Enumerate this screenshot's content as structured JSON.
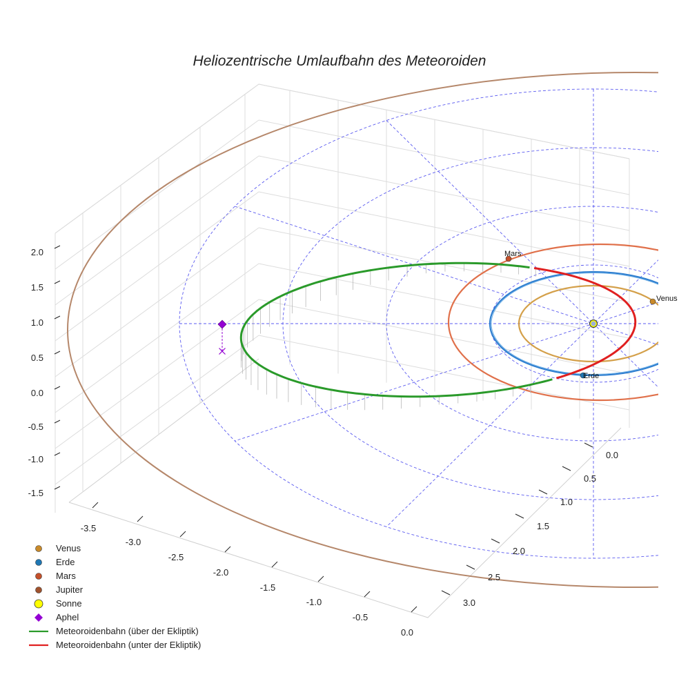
{
  "chart_data": {
    "type": "line3d",
    "title": "Heliozentrische Umlaufbahn des Meteoroiden",
    "axes": {
      "x": {
        "ticks": [
          "-3.5",
          "-3.0",
          "-2.5",
          "-2.0",
          "-1.5",
          "-1.0",
          "-0.5",
          "0.0"
        ]
      },
      "y": {
        "ticks": [
          "0.0",
          "0.5",
          "1.0",
          "1.5",
          "2.0",
          "2.5",
          "3.0"
        ]
      },
      "z": {
        "ticks": [
          "2.0",
          "1.5",
          "1.0",
          "0.5",
          "0.0",
          "-0.5",
          "-1.0",
          "-1.5"
        ]
      }
    },
    "planets": [
      {
        "name": "Venus",
        "label": "Venus",
        "semi_major_axis_au": 0.72,
        "color": "#d4a04a",
        "marker_color": "#c98a2a"
      },
      {
        "name": "Erde",
        "label": "Erde",
        "semi_major_axis_au": 1.0,
        "color": "#2f7fd0",
        "marker_color": "#1f77b4"
      },
      {
        "name": "Mars",
        "label": "Mars",
        "semi_major_axis_au": 1.52,
        "color": "#e0704a",
        "marker_color": "#c4502a"
      },
      {
        "name": "Jupiter",
        "label": "Jupiter",
        "semi_major_axis_au": 5.2,
        "color": "#b5876a",
        "marker_color": "#a0522d"
      }
    ],
    "sun": {
      "name": "Sonne",
      "color": "#ffff00"
    },
    "meteoroid_orbit": {
      "perihelion_au": 0.85,
      "aphelion_au": 3.85,
      "aphelion_height_au": 0.45,
      "above_label": "Meteoroidenbahn (über der Ekliptik)",
      "below_label": "Meteoroidenbahn (unter der Ekliptik)",
      "above_color": "#2a9a2a",
      "below_color": "#e02020"
    },
    "aphel": {
      "name": "Aphel",
      "color": "#9400d3"
    },
    "legend": [
      {
        "label": "Venus",
        "kind": "circle",
        "color": "#c98a2a"
      },
      {
        "label": "Erde",
        "kind": "circle",
        "color": "#1f77b4"
      },
      {
        "label": "Mars",
        "kind": "circle",
        "color": "#c4502a"
      },
      {
        "label": "Jupiter",
        "kind": "circle",
        "color": "#a0522d"
      },
      {
        "label": "Sonne",
        "kind": "sun",
        "color": "#ffff00"
      },
      {
        "label": "Aphel",
        "kind": "diamond",
        "color": "#9400d3"
      },
      {
        "label": "Meteoroidenbahn (über der Ekliptik)",
        "kind": "line",
        "color": "#2a9a2a"
      },
      {
        "label": "Meteoroidenbahn (unter der Ekliptik)",
        "kind": "line",
        "color": "#e02020"
      }
    ]
  }
}
